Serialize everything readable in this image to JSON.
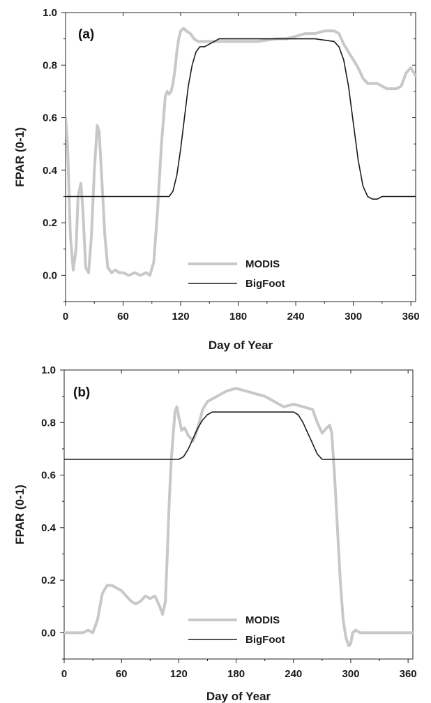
{
  "chart_data": [
    {
      "type": "line",
      "panel_label": "(a)",
      "xlabel": "Day of Year",
      "ylabel": "FPAR (0-1)",
      "xlim": [
        0,
        365
      ],
      "ylim": [
        -0.1,
        1.0
      ],
      "xticks": [
        "0",
        "60",
        "120",
        "180",
        "240",
        "300",
        "360"
      ],
      "yticks": [
        "0.0",
        "0.2",
        "0.4",
        "0.6",
        "0.8",
        "1.0"
      ],
      "legend_position": "lower-center",
      "series": [
        {
          "name": "MODIS",
          "color": "#c8c8c8",
          "x": [
            0,
            2,
            5,
            8,
            11,
            13,
            16,
            18,
            21,
            24,
            27,
            30,
            33,
            35,
            38,
            41,
            44,
            48,
            52,
            56,
            60,
            66,
            72,
            78,
            84,
            88,
            92,
            96,
            100,
            104,
            106,
            108,
            110,
            112,
            114,
            116,
            118,
            120,
            123,
            126,
            130,
            134,
            138,
            142,
            146,
            150,
            160,
            170,
            180,
            200,
            220,
            230,
            240,
            250,
            260,
            270,
            275,
            280,
            285,
            290,
            295,
            300,
            305,
            310,
            315,
            320,
            325,
            330,
            335,
            340,
            345,
            350,
            355,
            360,
            365
          ],
          "y": [
            0.6,
            0.5,
            0.15,
            0.02,
            0.1,
            0.3,
            0.35,
            0.25,
            0.03,
            0.01,
            0.15,
            0.4,
            0.57,
            0.55,
            0.35,
            0.15,
            0.03,
            0.01,
            0.02,
            0.01,
            0.01,
            0.0,
            0.01,
            0.0,
            0.01,
            0.0,
            0.05,
            0.25,
            0.5,
            0.68,
            0.7,
            0.69,
            0.7,
            0.73,
            0.78,
            0.85,
            0.9,
            0.93,
            0.94,
            0.93,
            0.92,
            0.9,
            0.89,
            0.89,
            0.89,
            0.89,
            0.89,
            0.89,
            0.89,
            0.89,
            0.9,
            0.9,
            0.91,
            0.92,
            0.92,
            0.93,
            0.93,
            0.93,
            0.92,
            0.88,
            0.85,
            0.82,
            0.79,
            0.75,
            0.73,
            0.73,
            0.73,
            0.72,
            0.71,
            0.71,
            0.71,
            0.72,
            0.77,
            0.79,
            0.76
          ]
        },
        {
          "name": "BigFoot",
          "color": "#1a1a1a",
          "x": [
            0,
            100,
            108,
            112,
            116,
            120,
            124,
            128,
            132,
            136,
            140,
            145,
            150,
            155,
            160,
            165,
            170,
            200,
            260,
            280,
            285,
            290,
            295,
            300,
            305,
            310,
            315,
            320,
            325,
            330,
            365
          ],
          "y": [
            0.3,
            0.3,
            0.3,
            0.32,
            0.38,
            0.48,
            0.6,
            0.72,
            0.8,
            0.85,
            0.87,
            0.87,
            0.88,
            0.89,
            0.9,
            0.9,
            0.9,
            0.9,
            0.9,
            0.89,
            0.87,
            0.82,
            0.72,
            0.58,
            0.44,
            0.34,
            0.3,
            0.29,
            0.29,
            0.3,
            0.3
          ]
        }
      ]
    },
    {
      "type": "line",
      "panel_label": "(b)",
      "xlabel": "Day of Year",
      "ylabel": "FPAR (0-1)",
      "xlim": [
        0,
        365
      ],
      "ylim": [
        -0.1,
        1.0
      ],
      "xticks": [
        "0",
        "60",
        "120",
        "180",
        "240",
        "300",
        "360"
      ],
      "yticks": [
        "0.0",
        "0.2",
        "0.4",
        "0.6",
        "0.8",
        "1.0"
      ],
      "legend_position": "lower-center",
      "series": [
        {
          "name": "MODIS",
          "color": "#c8c8c8",
          "x": [
            0,
            10,
            20,
            25,
            30,
            35,
            40,
            45,
            50,
            55,
            60,
            65,
            70,
            75,
            80,
            85,
            90,
            95,
            100,
            103,
            106,
            108,
            110,
            112,
            114,
            116,
            118,
            120,
            123,
            126,
            130,
            135,
            140,
            145,
            150,
            160,
            170,
            180,
            190,
            200,
            210,
            220,
            230,
            240,
            250,
            260,
            265,
            270,
            275,
            278,
            280,
            283,
            286,
            289,
            292,
            295,
            298,
            300,
            302,
            305,
            310,
            320,
            340,
            365
          ],
          "y": [
            0.0,
            0.0,
            0.0,
            0.01,
            0.0,
            0.05,
            0.15,
            0.18,
            0.18,
            0.17,
            0.16,
            0.14,
            0.12,
            0.11,
            0.12,
            0.14,
            0.13,
            0.14,
            0.1,
            0.07,
            0.12,
            0.3,
            0.5,
            0.65,
            0.75,
            0.84,
            0.86,
            0.82,
            0.77,
            0.78,
            0.75,
            0.73,
            0.78,
            0.85,
            0.88,
            0.9,
            0.92,
            0.93,
            0.92,
            0.91,
            0.9,
            0.88,
            0.86,
            0.87,
            0.86,
            0.85,
            0.8,
            0.76,
            0.78,
            0.79,
            0.76,
            0.6,
            0.4,
            0.2,
            0.05,
            -0.02,
            -0.05,
            -0.04,
            0.0,
            0.01,
            0.0,
            0.0,
            0.0,
            0.0
          ]
        },
        {
          "name": "BigFoot",
          "color": "#1a1a1a",
          "x": [
            0,
            115,
            120,
            125,
            130,
            135,
            140,
            145,
            150,
            155,
            160,
            200,
            240,
            245,
            250,
            255,
            260,
            265,
            270,
            275,
            365
          ],
          "y": [
            0.66,
            0.66,
            0.66,
            0.67,
            0.7,
            0.74,
            0.78,
            0.81,
            0.83,
            0.84,
            0.84,
            0.84,
            0.84,
            0.83,
            0.8,
            0.76,
            0.72,
            0.68,
            0.66,
            0.66,
            0.66
          ]
        }
      ]
    }
  ]
}
